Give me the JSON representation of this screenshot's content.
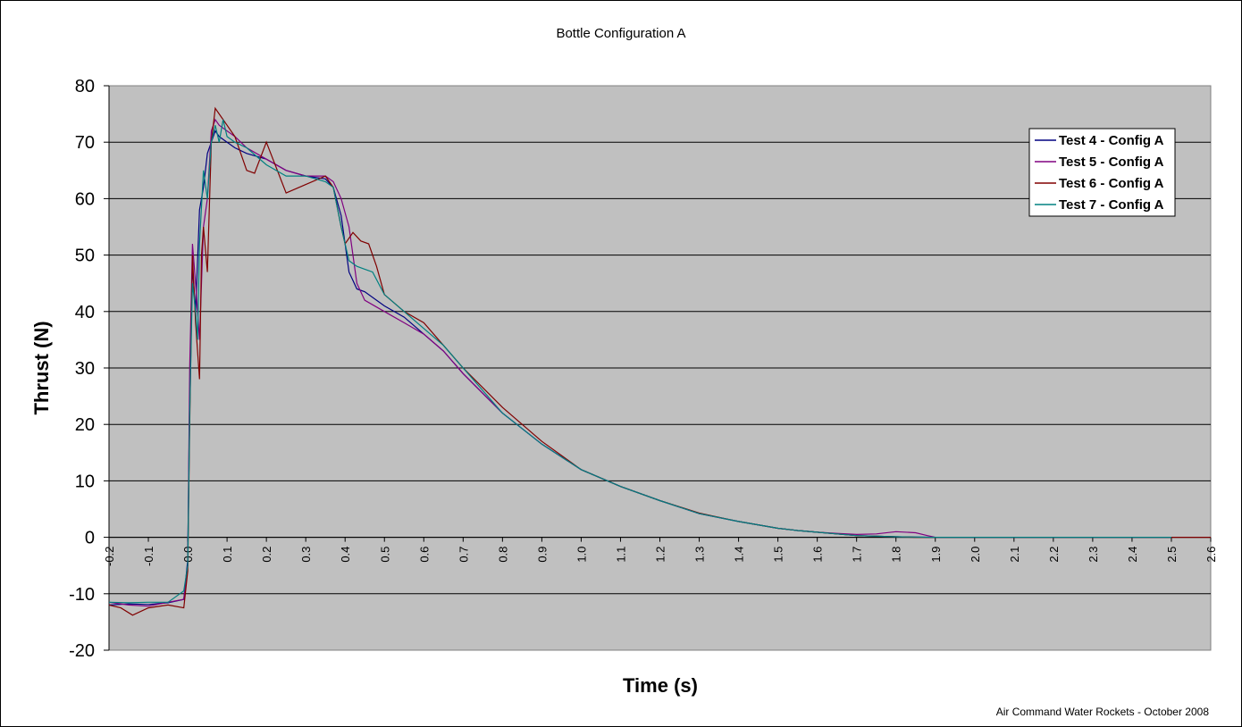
{
  "chart_data": {
    "type": "line",
    "title": "Bottle Configuration A",
    "xlabel": "Time (s)",
    "ylabel": "Thrust (N)",
    "footer": "Air Command Water Rockets - October 2008",
    "xlim": [
      -0.2,
      2.6
    ],
    "ylim": [
      -20,
      80
    ],
    "xticks": [
      "-0.2",
      "-0.1",
      "0.0",
      "0.1",
      "0.2",
      "0.3",
      "0.4",
      "0.5",
      "0.6",
      "0.7",
      "0.8",
      "0.9",
      "1.0",
      "1.1",
      "1.2",
      "1.3",
      "1.4",
      "1.5",
      "1.6",
      "1.7",
      "1.8",
      "1.9",
      "2.0",
      "2.1",
      "2.2",
      "2.3",
      "2.4",
      "2.5",
      "2.6"
    ],
    "yticks": [
      "80",
      "70",
      "60",
      "50",
      "40",
      "30",
      "20",
      "10",
      "0",
      "-10",
      "-20"
    ],
    "grid": "horizontal",
    "plot_background": "#C0C0C0",
    "legend_position": "top-right",
    "series": [
      {
        "name": "Test 4 - Config A",
        "color": "#000080",
        "x": [
          -0.2,
          -0.15,
          -0.1,
          -0.05,
          -0.01,
          0.0,
          0.005,
          0.012,
          0.02,
          0.03,
          0.04,
          0.05,
          0.06,
          0.07,
          0.08,
          0.1,
          0.12,
          0.15,
          0.2,
          0.25,
          0.3,
          0.35,
          0.37,
          0.39,
          0.41,
          0.43,
          0.45,
          0.5,
          0.55,
          0.6,
          0.65,
          0.7,
          0.8,
          0.9,
          1.0,
          1.1,
          1.2,
          1.3,
          1.4,
          1.5,
          1.55,
          1.6,
          1.65,
          1.7,
          1.75,
          1.8,
          1.85,
          1.9,
          2.0,
          2.1,
          2.2,
          2.3,
          2.4,
          2.5
        ],
        "y": [
          -12,
          -11.8,
          -11.9,
          -11.6,
          -11,
          -4,
          25,
          48,
          40,
          58,
          62,
          68,
          70,
          72,
          71,
          70,
          69,
          68,
          67,
          65,
          64,
          63.5,
          62,
          57,
          47,
          44,
          43.5,
          41,
          39,
          36,
          33,
          29,
          22,
          16.5,
          12,
          9,
          6.5,
          4.2,
          2.8,
          1.6,
          1.2,
          0.9,
          0.6,
          0.3,
          0.2,
          0.1,
          0.05,
          0,
          0,
          0,
          0,
          0,
          0,
          0
        ]
      },
      {
        "name": "Test 5 - Config A",
        "color": "#800080",
        "x": [
          -0.2,
          -0.15,
          -0.1,
          -0.05,
          -0.01,
          0.0,
          0.005,
          0.012,
          0.02,
          0.03,
          0.04,
          0.05,
          0.06,
          0.07,
          0.08,
          0.1,
          0.12,
          0.15,
          0.2,
          0.25,
          0.3,
          0.35,
          0.37,
          0.39,
          0.41,
          0.43,
          0.45,
          0.5,
          0.55,
          0.6,
          0.65,
          0.7,
          0.8,
          0.9,
          1.0,
          1.1,
          1.2,
          1.3,
          1.4,
          1.5,
          1.55,
          1.6,
          1.65,
          1.7,
          1.75,
          1.8,
          1.85,
          1.88,
          1.9,
          2.0,
          2.1,
          2.2,
          2.3,
          2.4,
          2.5
        ],
        "y": [
          -11.5,
          -12,
          -12.2,
          -11.5,
          -11,
          -5,
          30,
          52,
          45,
          35,
          55,
          60,
          72,
          74,
          73,
          72,
          71,
          69,
          67,
          65,
          64,
          64,
          63,
          60,
          55,
          45,
          42,
          40,
          38,
          36,
          33,
          29,
          22,
          16.5,
          12,
          9,
          6.5,
          4.2,
          2.8,
          1.6,
          1.2,
          0.9,
          0.7,
          0.5,
          0.6,
          1.0,
          0.8,
          0.3,
          0,
          0,
          0,
          0,
          0,
          0,
          0
        ]
      },
      {
        "name": "Test 6 - Config A",
        "color": "#800000",
        "x": [
          -0.2,
          -0.17,
          -0.14,
          -0.1,
          -0.05,
          -0.01,
          0.0,
          0.005,
          0.012,
          0.02,
          0.03,
          0.035,
          0.04,
          0.05,
          0.06,
          0.07,
          0.08,
          0.1,
          0.12,
          0.15,
          0.17,
          0.2,
          0.25,
          0.3,
          0.35,
          0.37,
          0.39,
          0.4,
          0.42,
          0.44,
          0.46,
          0.48,
          0.5,
          0.55,
          0.6,
          0.65,
          0.7,
          0.8,
          0.9,
          1.0,
          1.1,
          1.2,
          1.3,
          1.4,
          1.5,
          1.55,
          1.6,
          1.65,
          1.7,
          1.75,
          1.8,
          1.85,
          1.9,
          2.0,
          2.1,
          2.2,
          2.3,
          2.4,
          2.5,
          2.6
        ],
        "y": [
          -12,
          -12.5,
          -13.8,
          -12.5,
          -12,
          -12.5,
          -6,
          20,
          50,
          38,
          28,
          50,
          55,
          47,
          70,
          76,
          75,
          73,
          71,
          65,
          64.5,
          70,
          61,
          62.5,
          64,
          62,
          55,
          52,
          54,
          52.5,
          52,
          48,
          43,
          40,
          38,
          34,
          30,
          23,
          17,
          12,
          9,
          6.5,
          4.3,
          2.8,
          1.6,
          1.2,
          0.9,
          0.6,
          0.3,
          0.2,
          0.1,
          0,
          0,
          0,
          0,
          0,
          0,
          0,
          0,
          0
        ]
      },
      {
        "name": "Test 7 - Config A",
        "color": "#008080",
        "x": [
          -0.2,
          -0.15,
          -0.1,
          -0.05,
          -0.02,
          -0.01,
          0.0,
          0.005,
          0.012,
          0.02,
          0.025,
          0.03,
          0.04,
          0.05,
          0.06,
          0.07,
          0.08,
          0.09,
          0.1,
          0.12,
          0.15,
          0.2,
          0.25,
          0.3,
          0.35,
          0.37,
          0.39,
          0.41,
          0.43,
          0.45,
          0.47,
          0.5,
          0.55,
          0.6,
          0.65,
          0.7,
          0.8,
          0.9,
          1.0,
          1.1,
          1.2,
          1.3,
          1.4,
          1.5,
          1.55,
          1.6,
          1.65,
          1.7,
          1.75,
          1.8,
          1.85,
          1.9,
          2.0,
          2.1,
          2.2,
          2.3,
          2.4,
          2.5
        ],
        "y": [
          -11.5,
          -11.6,
          -11.5,
          -11.5,
          -10,
          -9.5,
          -5,
          22,
          45,
          40,
          35,
          52,
          65,
          60,
          70,
          73,
          70,
          74,
          71,
          70,
          69,
          66,
          64,
          64,
          63,
          62,
          55,
          49,
          48,
          47.5,
          47,
          43,
          40,
          37,
          34,
          30,
          22,
          16.5,
          12,
          9,
          6.5,
          4.2,
          2.8,
          1.6,
          1.2,
          0.9,
          0.6,
          0.3,
          0.2,
          0.1,
          0.05,
          0,
          0,
          0,
          0,
          0,
          0,
          0
        ]
      }
    ]
  }
}
